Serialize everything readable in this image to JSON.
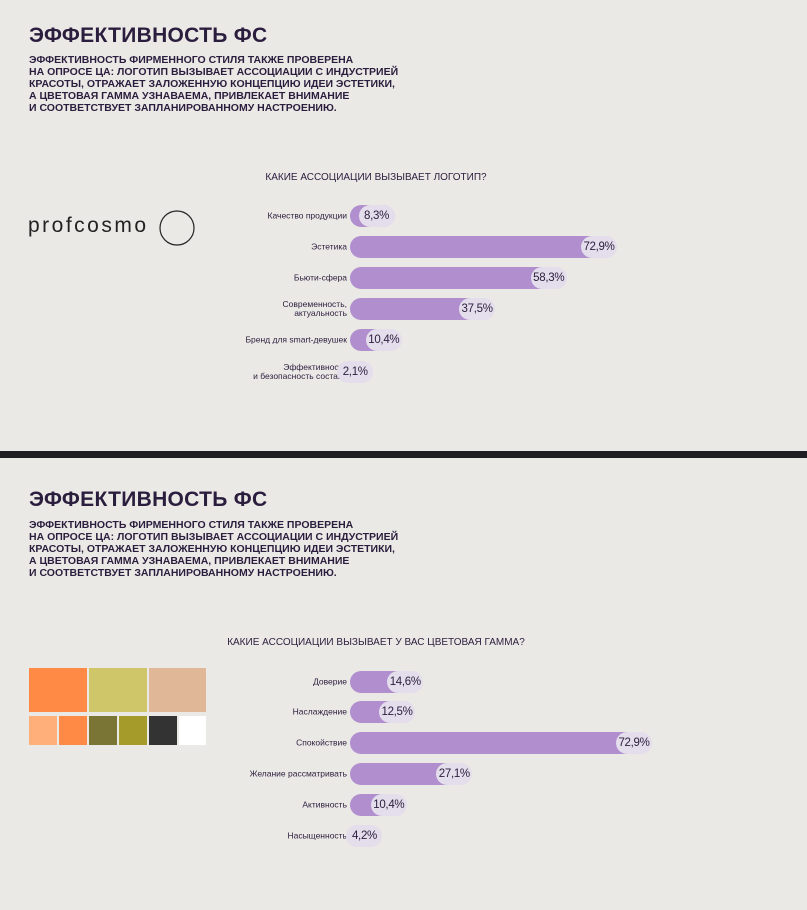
{
  "slides": [
    {
      "title": "ЭФФЕКТИВНОСТЬ ФС",
      "text": "ЭФФЕКТИВНОСТЬ ФИРМЕННОГО СТИЛЯ ТАКЖЕ ПРОВЕРЕНА\nНА ОПРОСЕ ЦА: ЛОГОТИП ВЫЗЫВАЕТ АССОЦИАЦИИ С ИНДУСТРИЕЙ\nКРАСОТЫ, ОТРАЖАЕТ ЗАЛОЖЕННУЮ КОНЦЕПЦИЮ ИДЕИ ЭСТЕТИКИ,\nА ЦВЕТОВАЯ ГАММА УЗНАВАЕМА, ПРИВЛЕКАЕТ ВНИМАНИЕ\nИ СООТВЕТСТВУЕТ ЗАПЛАНИРОВАННОМУ НАСТРОЕНИЮ.",
      "logo": "profcosmo"
    },
    {
      "title": "ЭФФЕКТИВНОСТЬ ФС",
      "text": "ЭФФЕКТИВНОСТЬ ФИРМЕННОГО СТИЛЯ ТАКЖЕ ПРОВЕРЕНА\nНА ОПРОСЕ ЦА: ЛОГОТИП ВЫЗЫВАЕТ АССОЦИАЦИИ С ИНДУСТРИЕЙ\nКРАСОТЫ, ОТРАЖАЕТ ЗАЛОЖЕННУЮ КОНЦЕПЦИЮ ИДЕИ ЭСТЕТИКИ,\nА ЦВЕТОВАЯ ГАММА УЗНАВАЕМА, ПРИВЛЕКАЕТ ВНИМАНИЕ\nИ СООТВЕТСТВУЕТ ЗАПЛАНИРОВАННОМУ НАСТРОЕНИЮ."
    }
  ],
  "chart_data": [
    {
      "type": "bar",
      "title": "КАКИЕ АССОЦИАЦИИ ВЫЗЫВАЕТ ЛОГОТИП?",
      "categories": [
        "Качество продукции",
        "Эстетика",
        "Бьюти-сфера",
        "Современность,\nактуальность",
        "Бренд для smart-девушек",
        "Эффективность\nи безопасность состава"
      ],
      "values": [
        8.3,
        72.9,
        58.3,
        37.5,
        10.4,
        2.1
      ],
      "value_labels": [
        "8,3%",
        "72,9%",
        "58,3%",
        "37,5%",
        "10,4%",
        "2,1%"
      ],
      "color": "#b18fcf"
    },
    {
      "type": "bar",
      "title": "КАКИЕ АССОЦИАЦИИ ВЫЗЫВАЕТ У ВАС ЦВЕТОВАЯ ГАММА?",
      "categories": [
        "Доверие",
        "Наслаждение",
        "Спокойствие",
        "Желание рассматривать",
        "Активность",
        "Насыщенность"
      ],
      "values": [
        14.6,
        12.5,
        72.9,
        27.1,
        10.4,
        4.2
      ],
      "value_labels": [
        "14,6%",
        "12,5%",
        "72,9%",
        "27,1%",
        "10,4%",
        "4,2%"
      ],
      "color": "#b18fcf"
    }
  ]
}
